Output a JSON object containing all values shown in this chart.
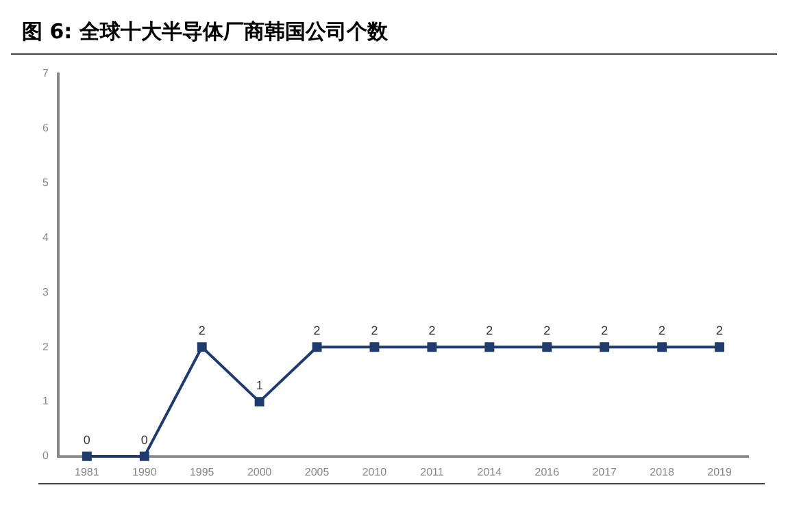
{
  "chart_data": {
    "type": "line",
    "title": "图 6: 全球十大半导体厂商韩国公司个数",
    "categories": [
      "1981",
      "1990",
      "1995",
      "2000",
      "2005",
      "2010",
      "2011",
      "2014",
      "2016",
      "2017",
      "2018",
      "2019"
    ],
    "series": [
      {
        "color": "#1f3b6e",
        "values": [
          0,
          0,
          2,
          1,
          2,
          2,
          2,
          2,
          2,
          2,
          2,
          2
        ]
      }
    ],
    "ylim": [
      0,
      7
    ],
    "yticks": [
      0,
      1,
      2,
      3,
      4,
      5,
      6,
      7
    ],
    "grid": false,
    "legend": false,
    "marker": "square",
    "line_style": "solid",
    "data_labels": true
  }
}
